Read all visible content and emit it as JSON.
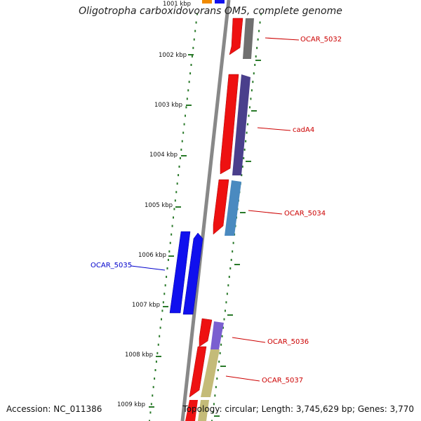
{
  "title": "Oligotropha carboxidovorans OM5, complete genome",
  "accession": "Accession: NC_011386",
  "topology": "Topology: circular; Length: 3,745,629 bp; Genes: 3,770",
  "kbp_labels": [
    "1001 kbp",
    "1002 kbp",
    "1003 kbp",
    "1004 kbp",
    "1005 kbp",
    "1006 kbp",
    "1007 kbp",
    "1008 kbp",
    "1009 kbp"
  ],
  "genes": [
    {
      "label": "OCAR_5032",
      "color": "#cc0000",
      "cds_color": "#707070"
    },
    {
      "label": "cadA4",
      "color": "#cc0000",
      "cds_color": "#4a3f8c"
    },
    {
      "label": "OCAR_5034",
      "color": "#cc0000",
      "cds_color": "#4a8ac0"
    },
    {
      "label": "OCAR_5035",
      "color": "#0000cc",
      "cds_color": "#1010ee"
    },
    {
      "label": "OCAR_5036",
      "color": "#cc0000",
      "cds_color": "#7a5fd0"
    },
    {
      "label": "OCAR_5037",
      "color": "#cc0000",
      "cds_color": "#c4bb78"
    }
  ],
  "colors": {
    "backbone": "#888888",
    "tick": "#2a7a2a",
    "gene_red": "#ee1111",
    "gene_blue": "#1111ee",
    "partial_orange": "#f08a00"
  }
}
